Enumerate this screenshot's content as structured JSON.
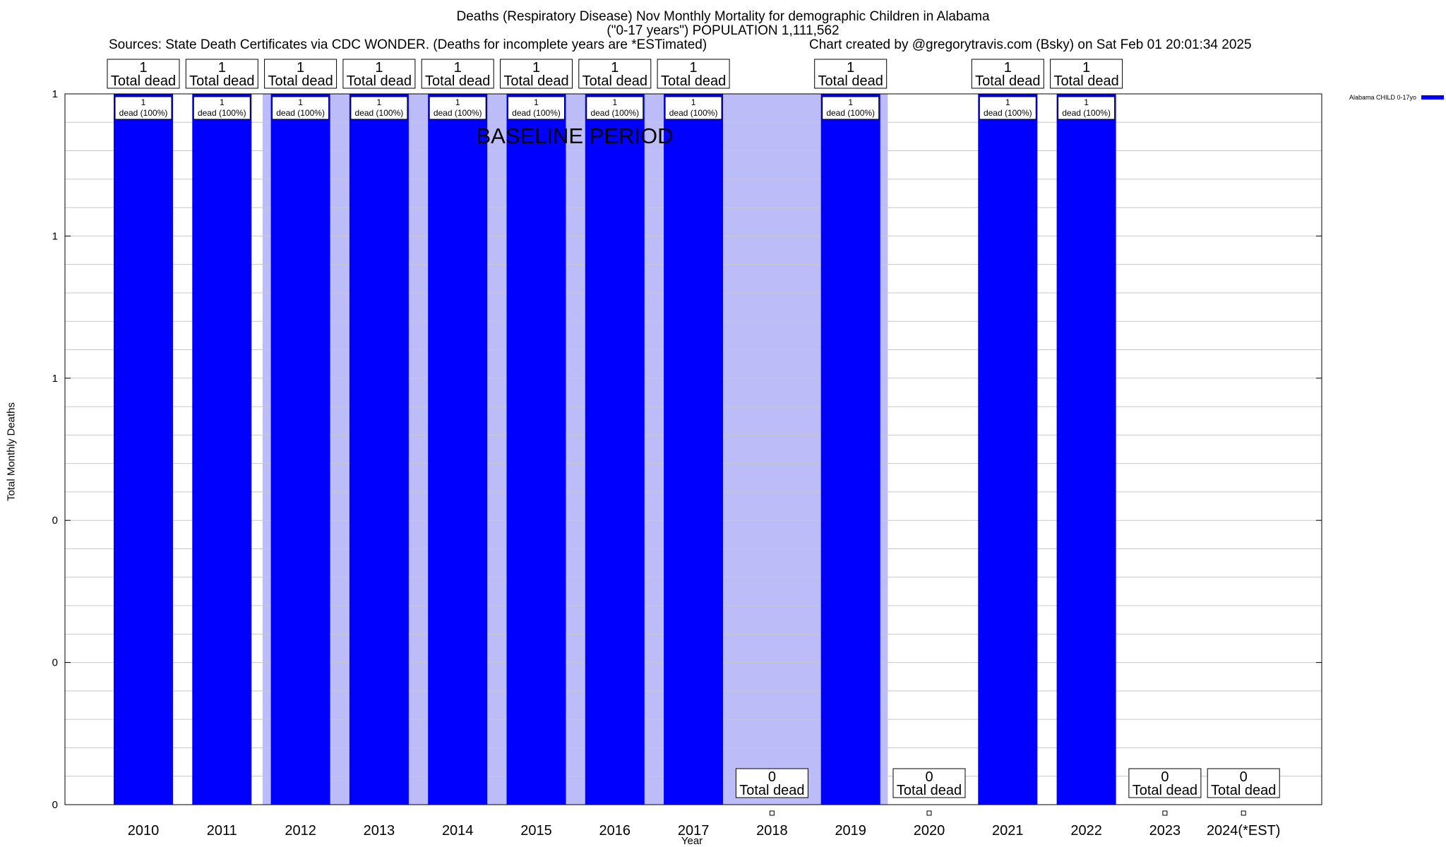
{
  "title_line1": "Deaths (Respiratory Disease) Nov Monthly Mortality for demographic Children in Alabama",
  "title_line2": "(\"0-17 years\") POPULATION 1,111,562",
  "sources": "Sources: State Death Certificates via CDC WONDER. (Deaths for incomplete years are *ESTimated)",
  "credit": "Chart created by @gregorytravis.com (Bsky) on Sat Feb 01 20:01:34 2025",
  "chart_data": {
    "type": "bar",
    "xlabel": "Year",
    "ylabel": "Total Monthly Deaths",
    "categories": [
      "2010",
      "2011",
      "2012",
      "2013",
      "2014",
      "2015",
      "2016",
      "2017",
      "2018",
      "2019",
      "2020",
      "2021",
      "2022",
      "2023",
      "2024(*EST)"
    ],
    "series": [
      {
        "name": "Alabama CHILD 0-17yo",
        "color": "#0000ff",
        "values": [
          1,
          1,
          1,
          1,
          1,
          1,
          1,
          1,
          0,
          1,
          0,
          1,
          1,
          0,
          0
        ]
      }
    ],
    "total_labels": [
      "1\nTotal dead",
      "1\nTotal dead",
      "1\nTotal dead",
      "1\nTotal dead",
      "1\nTotal dead",
      "1\nTotal dead",
      "1\nTotal dead",
      "1\nTotal dead",
      "0\nTotal dead",
      "1\nTotal dead",
      "0\nTotal dead",
      "1\nTotal dead",
      "1\nTotal dead",
      "0\nTotal dead",
      "0\nTotal dead"
    ],
    "inner_labels": [
      "1\ndead (100%)",
      "1\ndead (100%)",
      "1\ndead (100%)",
      "1\ndead (100%)",
      "1\ndead (100%)",
      "1\ndead (100%)",
      "1\ndead (100%)",
      "1\ndead (100%)",
      "",
      "1\ndead (100%)",
      "",
      "1\ndead (100%)",
      "1\ndead (100%)",
      "",
      ""
    ],
    "ytick_labels": [
      "0",
      "0",
      "0",
      "1",
      "1",
      "1"
    ],
    "ylim": [
      0,
      1
    ],
    "baseline_label": "BASELINE PERIOD",
    "baseline_range": [
      "2012",
      "2019"
    ],
    "baseline_color": "#bcbcf8",
    "legend_position": "top-right",
    "grid": true
  }
}
